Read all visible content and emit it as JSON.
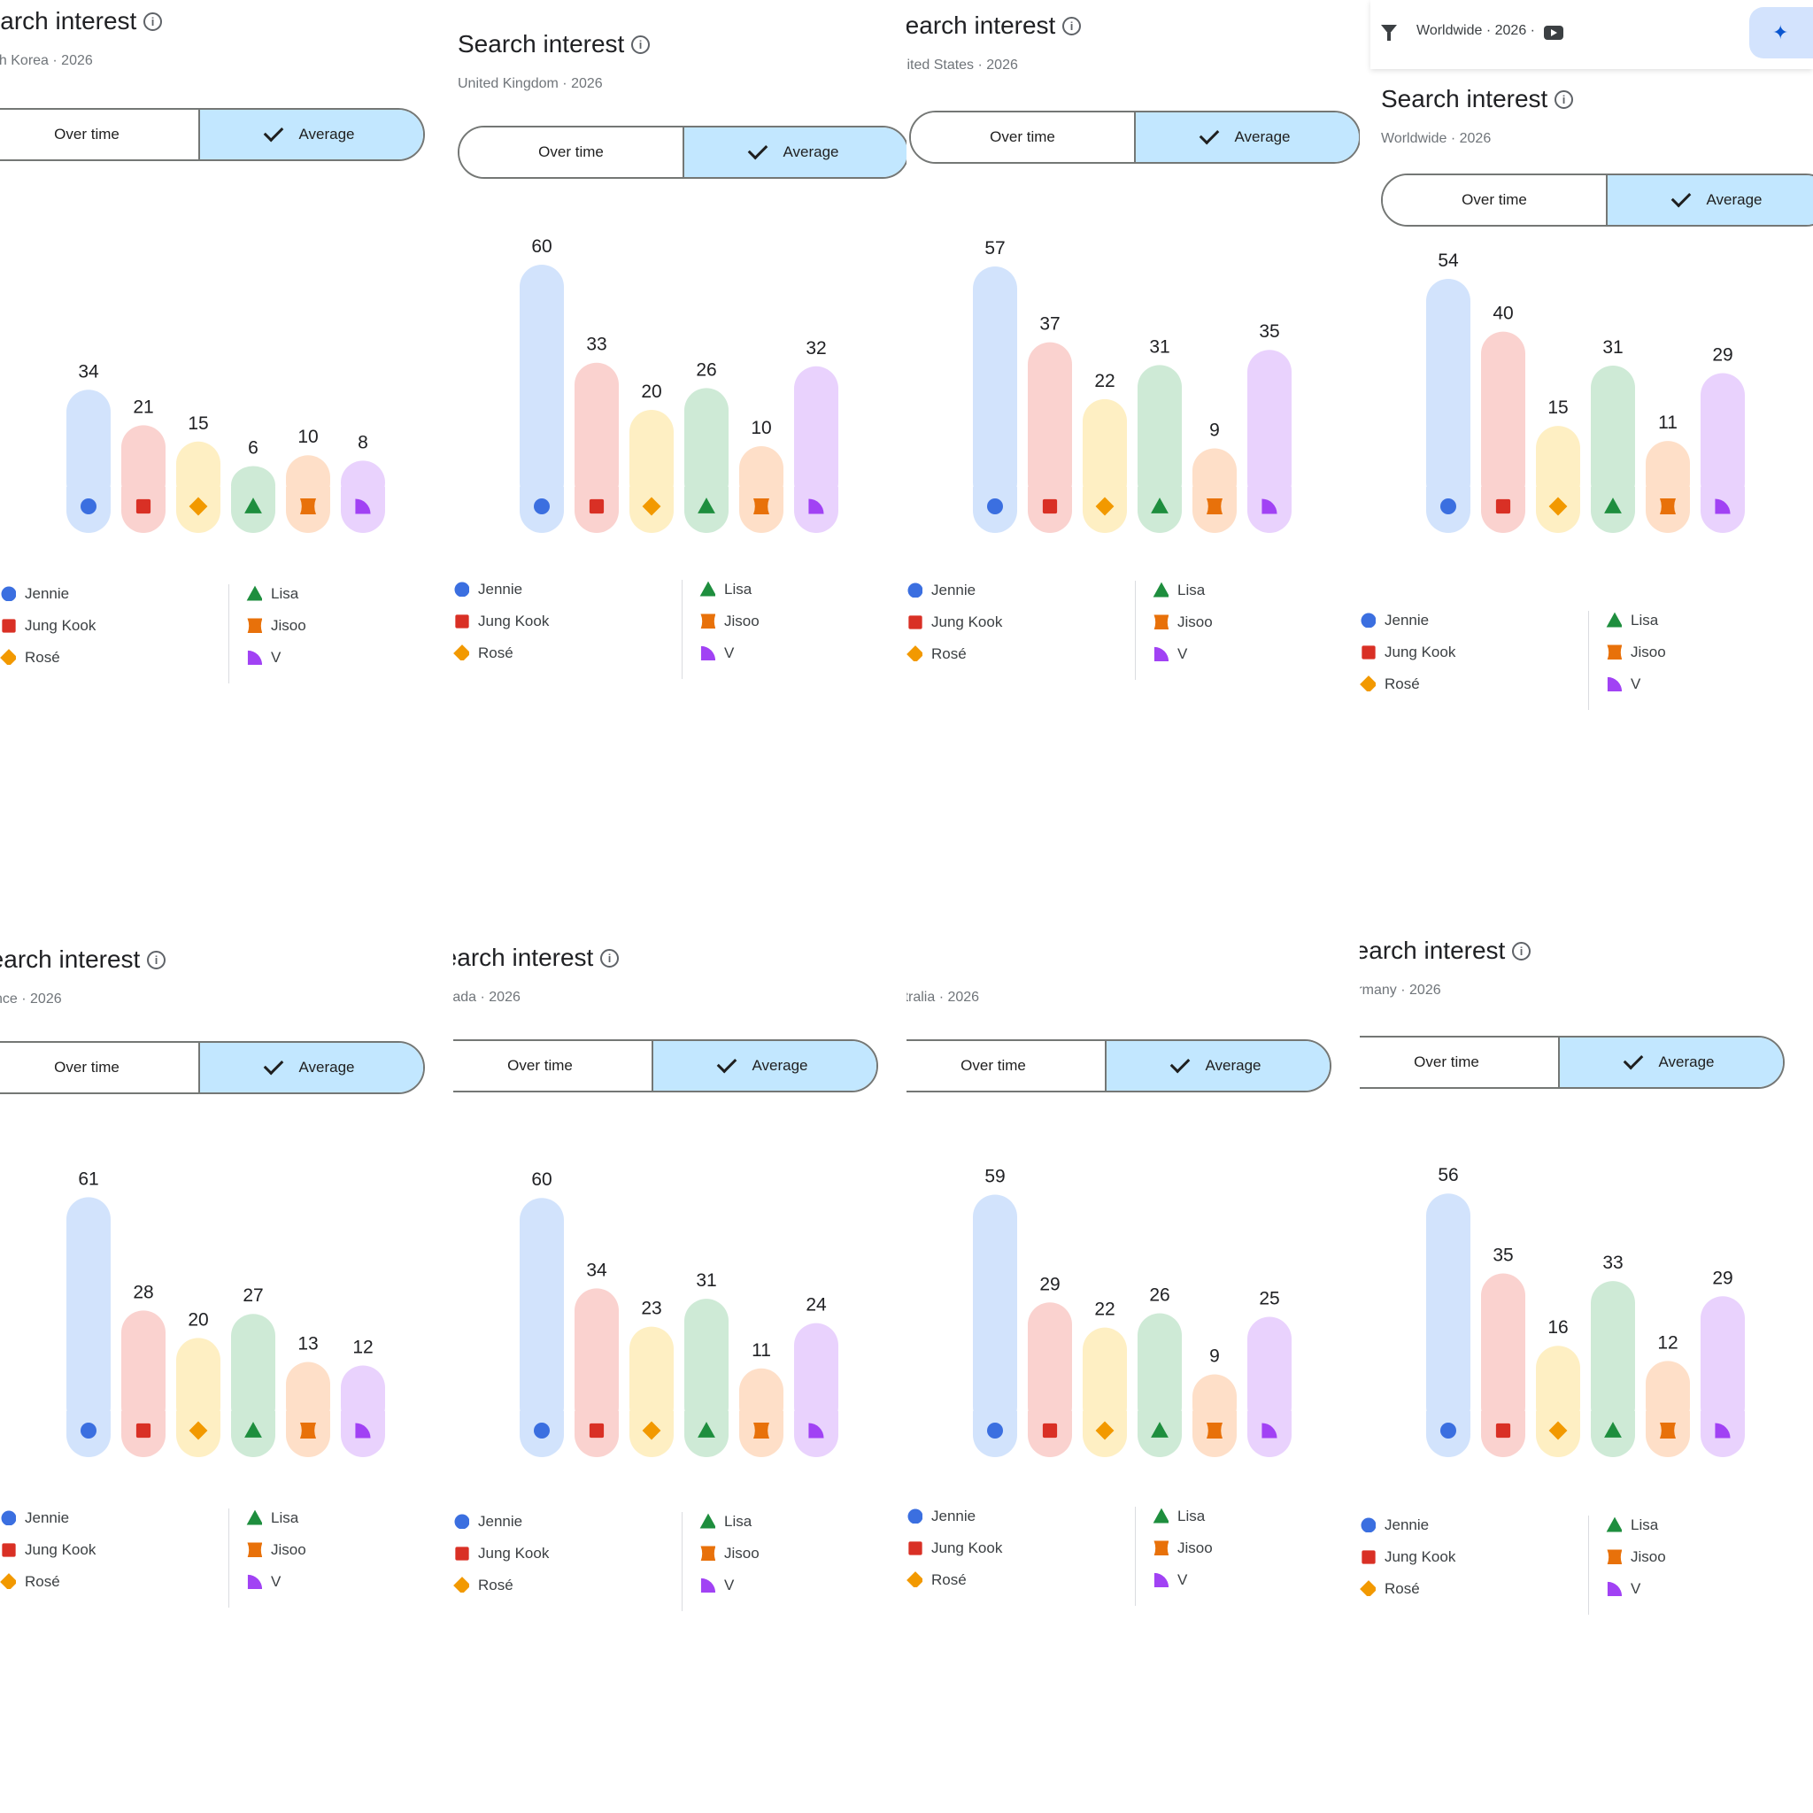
{
  "toolbar": {
    "filter_text": "Worldwide · 2026 ·",
    "filter_icon": "filter-icon",
    "youtube_icon": "youtube-icon",
    "insight_icon": "lightbulb-sparkle-icon"
  },
  "toggle": {
    "over_time": "Over time",
    "average": "Average",
    "selected": "Average"
  },
  "legend": [
    {
      "label": "Jennie",
      "color": "#3b6fe0",
      "shape": "circle"
    },
    {
      "label": "Jung Kook",
      "color": "#d93025",
      "shape": "square"
    },
    {
      "label": "Rosé",
      "color": "#f29900",
      "shape": "diamond"
    },
    {
      "label": "Lisa",
      "color": "#1e8e3e",
      "shape": "triangle"
    },
    {
      "label": "Jisoo",
      "color": "#e8710a",
      "shape": "hourglass"
    },
    {
      "label": "V",
      "color": "#a142f4",
      "shape": "quarter"
    }
  ],
  "bar_fill_colors": [
    "#d2e3fc",
    "#fad2cf",
    "#feefc3",
    "#ceead6",
    "#fedfc8",
    "#e9d2fd"
  ],
  "chart_data": [
    {
      "type": "bar",
      "title": "Search interest",
      "region": "South Korea",
      "year": "2026",
      "categories": [
        "Jennie",
        "Jung Kook",
        "Rosé",
        "Lisa",
        "Jisoo",
        "V"
      ],
      "values": [
        34,
        21,
        15,
        6,
        10,
        8
      ]
    },
    {
      "type": "bar",
      "title": "Search interest",
      "region": "United Kingdom",
      "year": "2026",
      "categories": [
        "Jennie",
        "Jung Kook",
        "Rosé",
        "Lisa",
        "Jisoo",
        "V"
      ],
      "values": [
        60,
        33,
        20,
        26,
        10,
        32
      ]
    },
    {
      "type": "bar",
      "title": "Search interest",
      "region": "United States",
      "year": "2026",
      "categories": [
        "Jennie",
        "Jung Kook",
        "Rosé",
        "Lisa",
        "Jisoo",
        "V"
      ],
      "values": [
        57,
        37,
        22,
        31,
        9,
        35
      ]
    },
    {
      "type": "bar",
      "title": "Search interest",
      "region": "Worldwide",
      "year": "2026",
      "categories": [
        "Jennie",
        "Jung Kook",
        "Rosé",
        "Lisa",
        "Jisoo",
        "V"
      ],
      "values": [
        54,
        40,
        15,
        31,
        11,
        29
      ]
    },
    {
      "type": "bar",
      "title": "Search interest",
      "region": "France",
      "year": "2026",
      "categories": [
        "Jennie",
        "Jung Kook",
        "Rosé",
        "Lisa",
        "Jisoo",
        "V"
      ],
      "values": [
        61,
        28,
        20,
        27,
        13,
        12
      ]
    },
    {
      "type": "bar",
      "title": "Search interest",
      "region": "Canada",
      "year": "2026",
      "categories": [
        "Jennie",
        "Jung Kook",
        "Rosé",
        "Lisa",
        "Jisoo",
        "V"
      ],
      "values": [
        60,
        34,
        23,
        31,
        11,
        24
      ]
    },
    {
      "type": "bar",
      "title": "",
      "region": "Australia",
      "year": "2026",
      "categories": [
        "Jennie",
        "Jung Kook",
        "Rosé",
        "Lisa",
        "Jisoo",
        "V"
      ],
      "values": [
        59,
        29,
        22,
        26,
        9,
        25
      ]
    },
    {
      "type": "bar",
      "title": "Search interest",
      "region": "Germany",
      "year": "2026",
      "categories": [
        "Jennie",
        "Jung Kook",
        "Rosé",
        "Lisa",
        "Jisoo",
        "V"
      ],
      "values": [
        56,
        35,
        16,
        33,
        12,
        29
      ]
    }
  ]
}
